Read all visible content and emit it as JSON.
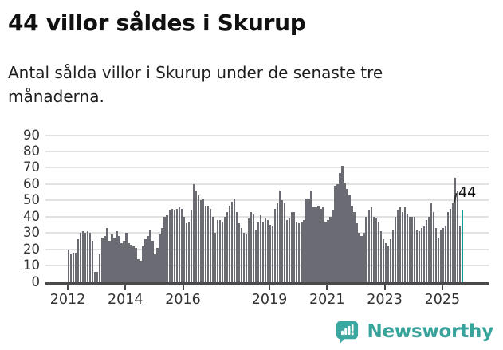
{
  "header": {
    "title": "44 villor såldes i Skurup",
    "subtitle": "Antal sålda villor i Skurup under de senaste tre månaderna."
  },
  "chart_data": {
    "type": "bar",
    "title": "44 villor såldes i Skurup",
    "xlabel": "",
    "ylabel": "",
    "x_start": "2012-01",
    "x_freq": "monthly",
    "ylim": [
      0,
      90
    ],
    "yticks": [
      0,
      10,
      20,
      30,
      40,
      50,
      60,
      70,
      80,
      90
    ],
    "xticks": [
      2012,
      2014,
      2016,
      2019,
      2021,
      2023,
      2025
    ],
    "grid": "horizontal",
    "legend": "none",
    "bar_color": "#6b6b73",
    "highlight_color": "#0f9c92",
    "annotation_label": "44",
    "highlight_index": 164,
    "values": [
      20,
      17,
      18,
      18,
      26,
      30,
      31,
      30,
      31,
      30,
      25,
      6,
      6,
      17,
      27,
      28,
      33,
      25,
      29,
      27,
      31,
      28,
      24,
      25,
      30,
      24,
      23,
      22,
      21,
      14,
      13,
      22,
      26,
      28,
      32,
      25,
      17,
      21,
      29,
      33,
      40,
      41,
      44,
      45,
      44,
      45,
      46,
      45,
      40,
      36,
      37,
      44,
      60,
      56,
      53,
      50,
      51,
      47,
      47,
      45,
      40,
      30,
      38,
      38,
      37,
      40,
      43,
      47,
      49,
      51,
      43,
      36,
      33,
      30,
      29,
      39,
      43,
      42,
      32,
      37,
      41,
      37,
      39,
      38,
      35,
      34,
      45,
      48,
      56,
      50,
      48,
      38,
      39,
      43,
      43,
      37,
      36,
      37,
      38,
      51,
      51,
      56,
      46,
      46,
      47,
      45,
      46,
      37,
      38,
      40,
      44,
      59,
      60,
      67,
      71,
      61,
      57,
      53,
      47,
      43,
      36,
      30,
      28,
      30,
      40,
      44,
      46,
      40,
      39,
      37,
      31,
      26,
      24,
      22,
      26,
      32,
      40,
      44,
      46,
      43,
      46,
      42,
      40,
      40,
      40,
      32,
      31,
      33,
      34,
      38,
      40,
      48,
      43,
      33,
      27,
      32,
      33,
      34,
      43,
      45,
      48,
      64,
      56,
      34,
      44
    ]
  },
  "footer": {
    "brand": "Newsworthy",
    "brand_color": "#38a39b",
    "logo_icon": "bar-chart-speech-bubble"
  }
}
